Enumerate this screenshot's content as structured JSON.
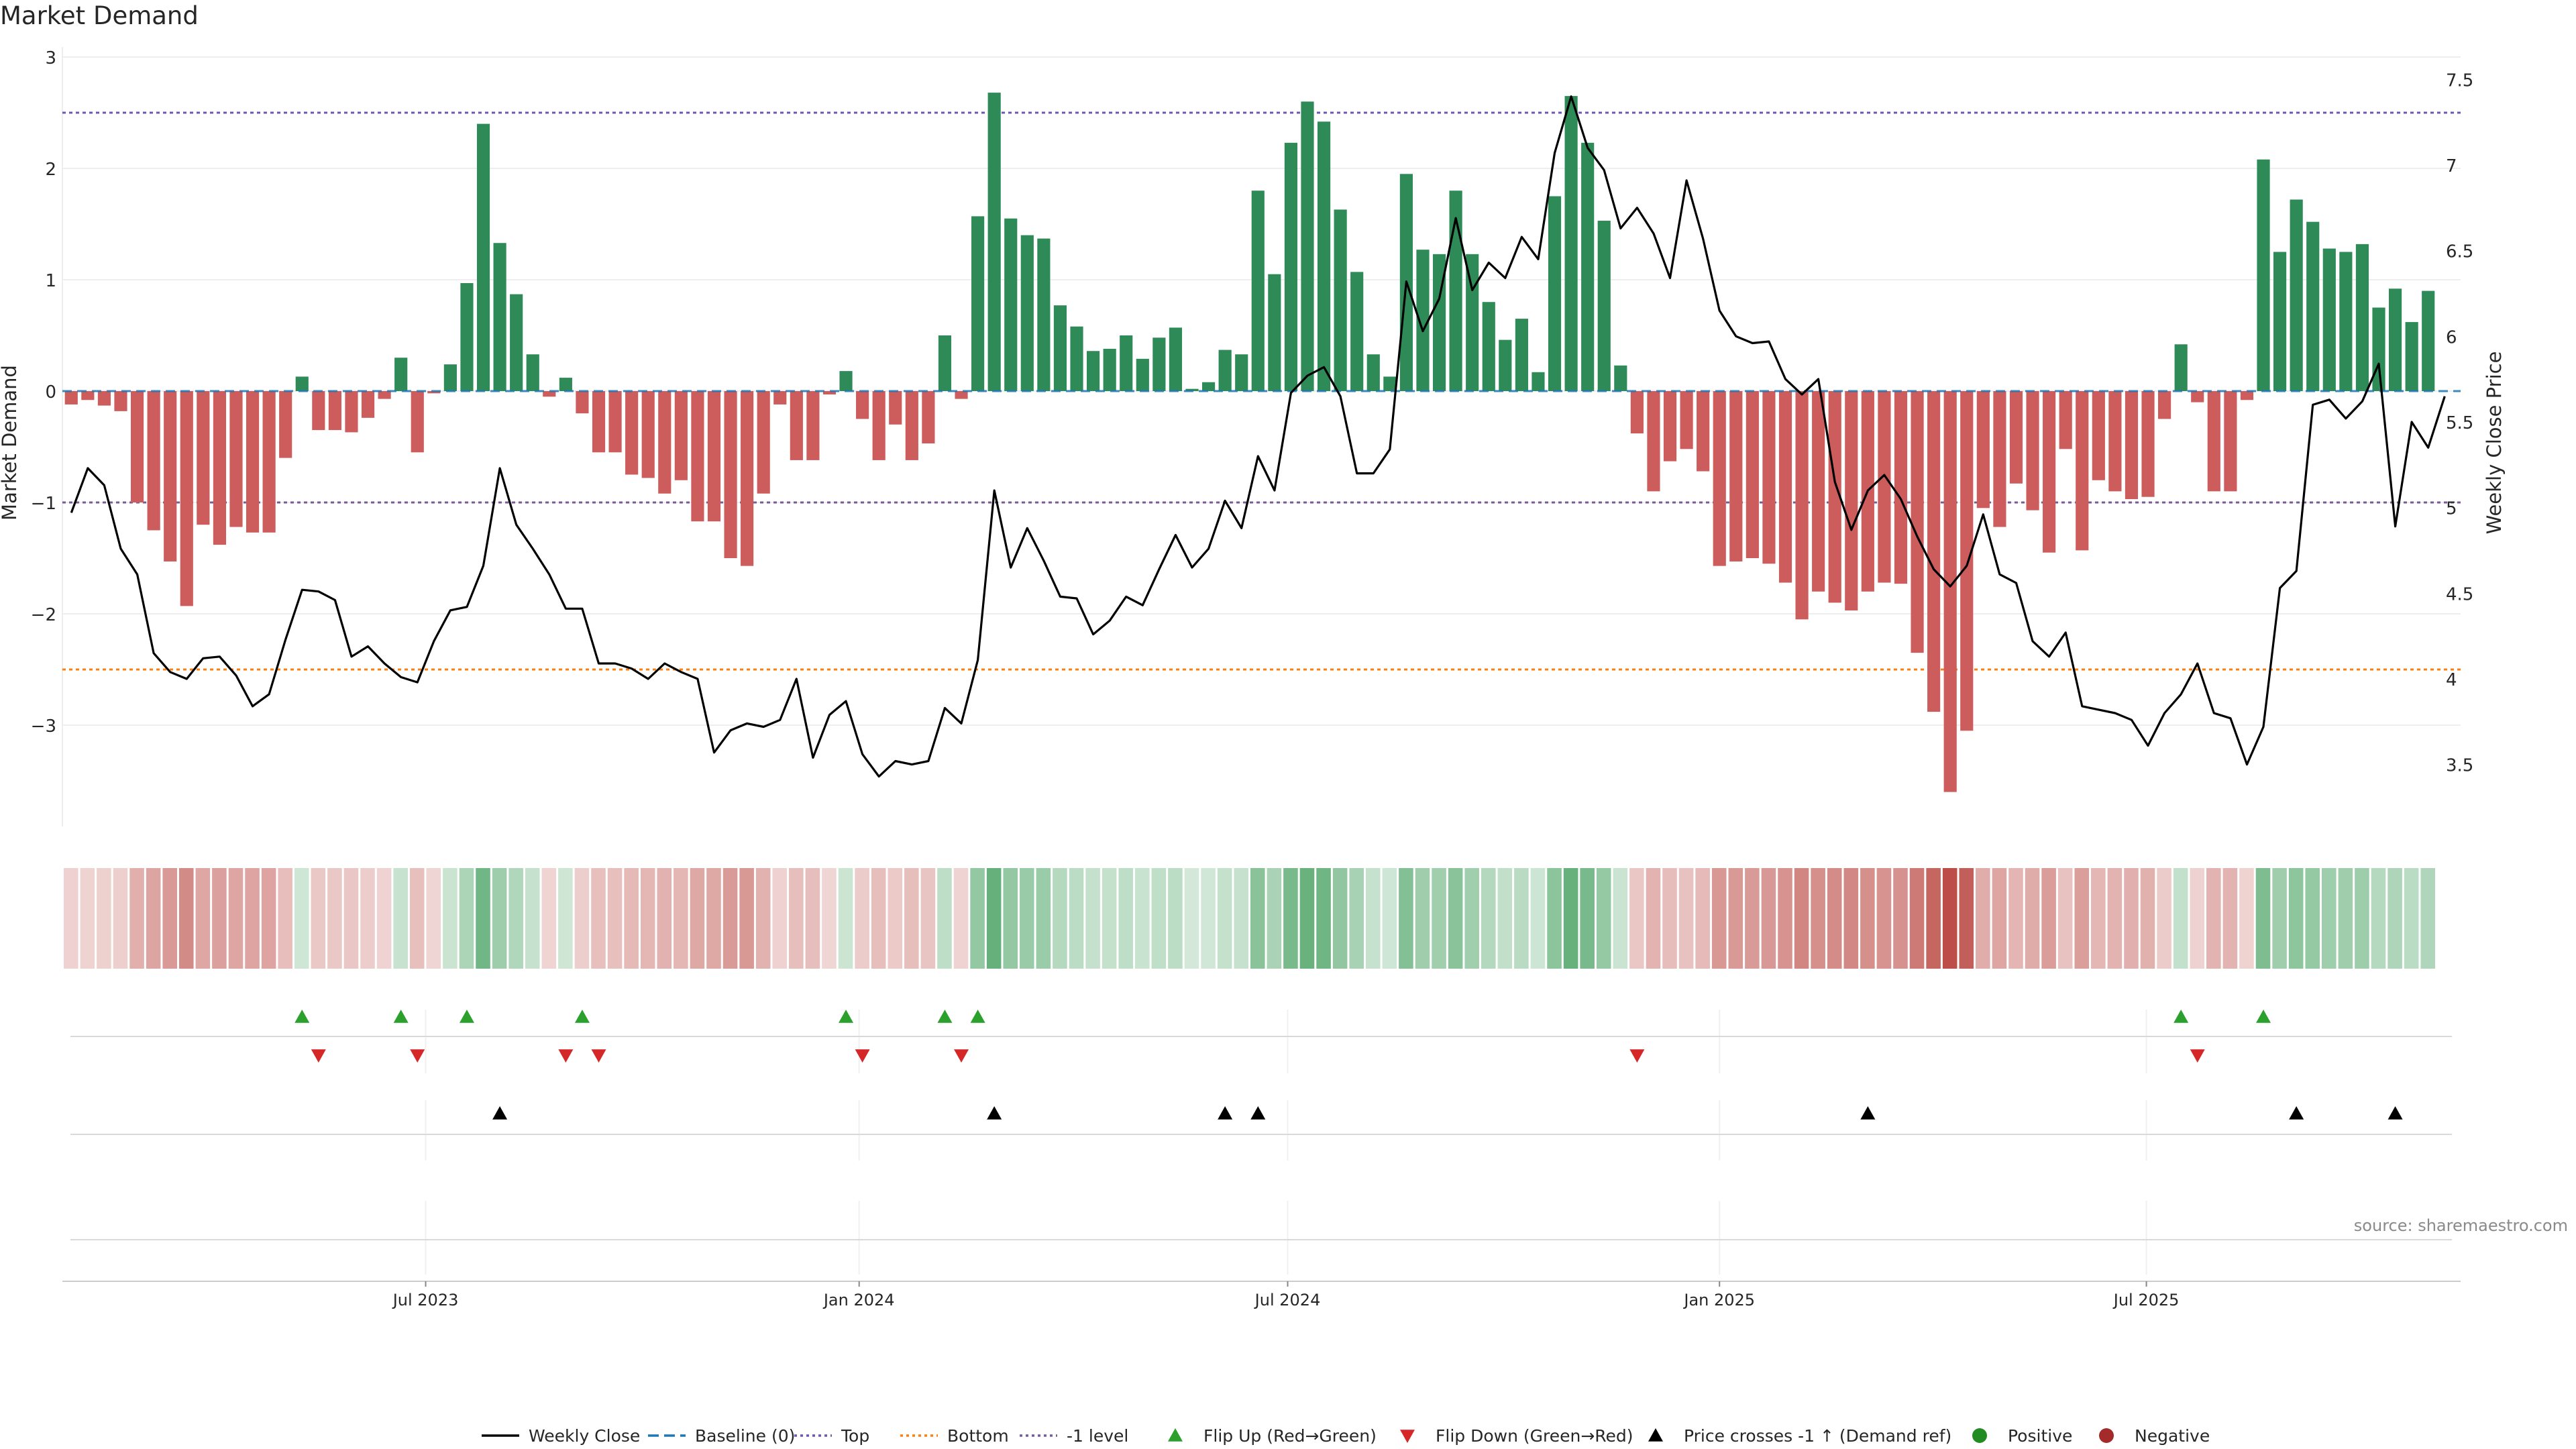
{
  "title": "Market Demand",
  "source": "source: sharemaestro.com",
  "colors": {
    "positive": "#2e8b57",
    "negative": "#cd5c5c",
    "price": "#000000",
    "baseline": "#1f77b4",
    "top": "#6f57b3",
    "bottom": "#ff7f0e",
    "minus1": "#7a5b9a",
    "flip_up": "#2ca02c",
    "flip_down": "#d62728",
    "cross": "#000000"
  },
  "chart_data": {
    "type": "bar",
    "title": "Market Demand",
    "ylabel": "Market Demand",
    "y2label": "Weekly Close Price",
    "ylim": [
      -3.9,
      3.0
    ],
    "y2lim": [
      3.15,
      7.65
    ],
    "yticks": [
      {
        "v": 3,
        "label": "3"
      },
      {
        "v": 2,
        "label": "2"
      },
      {
        "v": 1,
        "label": "1"
      },
      {
        "v": 0,
        "label": "0"
      },
      {
        "v": -1,
        "label": "−1"
      },
      {
        "v": -2,
        "label": "−2"
      },
      {
        "v": -3,
        "label": "−3"
      }
    ],
    "y2ticks": [
      {
        "v": 7.5,
        "label": "7.5"
      },
      {
        "v": 7,
        "label": "7"
      },
      {
        "v": 6.5,
        "label": "6.5"
      },
      {
        "v": 6,
        "label": "6"
      },
      {
        "v": 5.5,
        "label": "5.5"
      },
      {
        "v": 5,
        "label": "5"
      },
      {
        "v": 4.5,
        "label": "4.5"
      },
      {
        "v": 4,
        "label": "4"
      },
      {
        "v": 3.5,
        "label": "3.5"
      }
    ],
    "xticks": [
      {
        "week": 21.5,
        "label": "Jul 2023"
      },
      {
        "week": 47.8,
        "label": "Jan 2024"
      },
      {
        "week": 73.8,
        "label": "Jul 2024"
      },
      {
        "week": 100.0,
        "label": "Jan 2025"
      },
      {
        "week": 125.9,
        "label": "Jul 2025"
      }
    ],
    "levels": {
      "top": 2.5,
      "bottom": -2.5,
      "minus1": -1,
      "baseline": 0
    },
    "demand": [
      -0.12,
      -0.08,
      -0.13,
      -0.18,
      -1.0,
      -1.25,
      -1.53,
      -1.93,
      -1.2,
      -1.38,
      -1.22,
      -1.27,
      -1.27,
      -0.6,
      0.13,
      -0.35,
      -0.35,
      -0.37,
      -0.24,
      -0.07,
      0.3,
      -0.55,
      -0.02,
      0.24,
      0.97,
      2.4,
      1.33,
      0.87,
      0.33,
      -0.05,
      0.12,
      -0.2,
      -0.55,
      -0.55,
      -0.75,
      -0.78,
      -0.92,
      -0.8,
      -1.17,
      -1.17,
      -1.5,
      -1.57,
      -0.92,
      -0.12,
      -0.62,
      -0.62,
      -0.03,
      0.18,
      -0.25,
      -0.62,
      -0.3,
      -0.62,
      -0.47,
      0.5,
      -0.07,
      1.57,
      2.68,
      1.55,
      1.4,
      1.37,
      0.77,
      0.58,
      0.36,
      0.38,
      0.5,
      0.29,
      0.48,
      0.57,
      0.02,
      0.08,
      0.37,
      0.33,
      1.8,
      1.05,
      2.23,
      2.6,
      2.42,
      1.63,
      1.07,
      0.33,
      0.13,
      1.95,
      1.27,
      1.23,
      1.8,
      1.23,
      0.8,
      0.46,
      0.65,
      0.17,
      1.75,
      2.65,
      2.23,
      1.53,
      0.23,
      -0.38,
      -0.9,
      -0.63,
      -0.52,
      -0.72,
      -1.57,
      -1.53,
      -1.5,
      -1.55,
      -1.72,
      -2.05,
      -1.8,
      -1.9,
      -1.97,
      -1.8,
      -1.72,
      -1.73,
      -2.35,
      -2.88,
      -3.6,
      -3.05,
      -1.05,
      -1.22,
      -0.83,
      -1.07,
      -1.45,
      -0.52,
      -1.43,
      -0.8,
      -0.9,
      -0.97,
      -0.95,
      -0.25,
      0.42,
      -0.1,
      -0.9,
      -0.9,
      -0.08,
      2.08,
      1.25,
      1.72,
      1.52,
      1.28,
      1.25,
      1.32,
      0.75,
      0.92,
      0.62,
      0.9
    ],
    "price": [
      4.97,
      5.23,
      5.13,
      4.76,
      4.61,
      4.15,
      4.04,
      4.0,
      4.12,
      4.13,
      4.02,
      3.84,
      3.91,
      4.23,
      4.52,
      4.51,
      4.46,
      4.13,
      4.19,
      4.09,
      4.01,
      3.98,
      4.22,
      4.4,
      4.42,
      4.66,
      5.23,
      4.9,
      4.76,
      4.61,
      4.41,
      4.41,
      4.09,
      4.09,
      4.06,
      4.0,
      4.09,
      4.04,
      4.0,
      3.57,
      3.7,
      3.74,
      3.72,
      3.76,
      4.0,
      3.54,
      3.79,
      3.87,
      3.56,
      3.43,
      3.52,
      3.5,
      3.52,
      3.83,
      3.74,
      4.11,
      5.1,
      4.65,
      4.88,
      4.69,
      4.48,
      4.47,
      4.26,
      4.34,
      4.48,
      4.43,
      4.64,
      4.84,
      4.65,
      4.76,
      5.04,
      4.88,
      5.3,
      5.1,
      5.67,
      5.77,
      5.82,
      5.65,
      5.2,
      5.2,
      5.34,
      6.32,
      6.03,
      6.22,
      6.69,
      6.27,
      6.43,
      6.34,
      6.58,
      6.45,
      7.07,
      7.4,
      7.1,
      6.97,
      6.63,
      6.75,
      6.6,
      6.34,
      6.91,
      6.57,
      6.15,
      6.0,
      5.96,
      5.97,
      5.75,
      5.66,
      5.75,
      5.15,
      4.87,
      5.1,
      5.19,
      5.05,
      4.83,
      4.64,
      4.54,
      4.66,
      4.96,
      4.61,
      4.56,
      4.22,
      4.13,
      4.27,
      3.84,
      3.82,
      3.8,
      3.76,
      3.61,
      3.8,
      3.91,
      4.09,
      3.8,
      3.77,
      3.5,
      3.72,
      4.53,
      4.63,
      5.6,
      5.63,
      5.52,
      5.62,
      5.84,
      4.89,
      5.5,
      5.35,
      5.65
    ],
    "flip_up_weeks": [
      14,
      20,
      24,
      31,
      47,
      53,
      55,
      128,
      133
    ],
    "flip_down_weeks": [
      15,
      21,
      30,
      32,
      48,
      54,
      95,
      129
    ],
    "cross_weeks": [
      26,
      56,
      70,
      72,
      109,
      135,
      141
    ]
  },
  "legend": [
    {
      "key": "price",
      "label": "Weekly Close"
    },
    {
      "key": "baseline",
      "label": "Baseline (0)"
    },
    {
      "key": "top",
      "label": "Top"
    },
    {
      "key": "bottom",
      "label": "Bottom"
    },
    {
      "key": "minus1",
      "label": "-1 level"
    },
    {
      "key": "flip_up",
      "label": "Flip Up (Red→Green)"
    },
    {
      "key": "flip_down",
      "label": "Flip Down (Green→Red)"
    },
    {
      "key": "cross",
      "label": "Price crosses -1 ↑ (Demand ref)"
    },
    {
      "key": "positive",
      "label": "Positive"
    },
    {
      "key": "negative",
      "label": "Negative"
    }
  ]
}
